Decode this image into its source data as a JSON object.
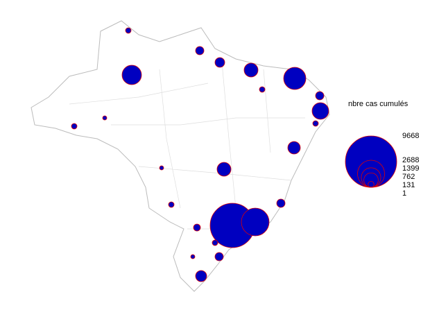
{
  "legend": {
    "title": "nbre cas cumulés",
    "values": [
      9668,
      2688,
      1399,
      762,
      131,
      1
    ],
    "color": "#0000c0",
    "stroke": "#e00000"
  }
}
